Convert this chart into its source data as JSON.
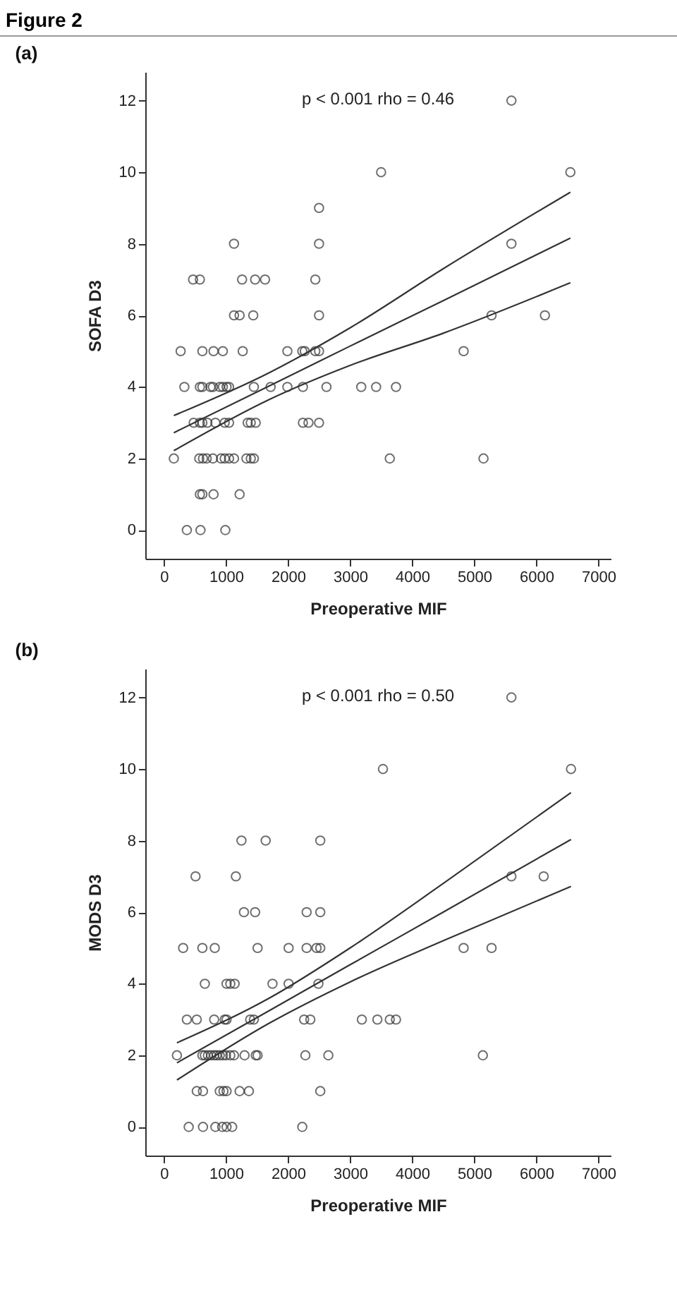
{
  "chart_data": [
    {
      "type": "scatter",
      "title": "Figure 2",
      "subtitle": "(a)",
      "xlabel": "Preoperative MIF",
      "ylabel": "SOFA D3",
      "annotations": [
        "p < 0.001  rho = 0.46"
      ],
      "xlim": [
        -300,
        7200
      ],
      "xticks": [
        0,
        1000,
        2000,
        3000,
        4000,
        5000,
        6000,
        7000
      ],
      "ylim": [
        -0.8,
        12.8
      ],
      "yticks": [
        0,
        2,
        4,
        6,
        8,
        10,
        12
      ],
      "grid": false,
      "series": [
        {
          "type": "scatter",
          "marker": "circle",
          "color": "#333333",
          "x": [
            5600,
            3500,
            6550,
            2500,
            1130,
            2500,
            5600,
            470,
            580,
            1260,
            1470,
            1630,
            2440,
            1130,
            1220,
            1440,
            2500,
            5280,
            6140,
            270,
            620,
            800,
            950,
            1270,
            1990,
            2230,
            2270,
            2440,
            2500,
            4830,
            330,
            580,
            620,
            750,
            790,
            900,
            950,
            1010,
            1050,
            1450,
            1720,
            1990,
            2240,
            2620,
            3180,
            3420,
            3740,
            480,
            580,
            620,
            700,
            830,
            980,
            1050,
            1350,
            1400,
            1480,
            2240,
            2330,
            2500,
            160,
            570,
            630,
            690,
            790,
            920,
            980,
            1050,
            1130,
            1330,
            1400,
            1450,
            3640,
            5150,
            580,
            620,
            800,
            1220,
            370,
            590,
            990
          ],
          "values": [
            12,
            10,
            10,
            9,
            8,
            8,
            8,
            7,
            7,
            7,
            7,
            7,
            7,
            6,
            6,
            6,
            6,
            6,
            6,
            5,
            5,
            5,
            5,
            5,
            5,
            5,
            5,
            5,
            5,
            5,
            4,
            4,
            4,
            4,
            4,
            4,
            4,
            4,
            4,
            4,
            4,
            4,
            4,
            4,
            4,
            4,
            4,
            3,
            3,
            3,
            3,
            3,
            3,
            3,
            3,
            3,
            3,
            3,
            3,
            3,
            2,
            2,
            2,
            2,
            2,
            2,
            2,
            2,
            2,
            2,
            2,
            2,
            2,
            2,
            1,
            1,
            1,
            1,
            0,
            0,
            0
          ]
        },
        {
          "type": "line",
          "color": "#333333",
          "x": [
            160,
            1700,
            3000,
            4500,
            6550
          ],
          "values": [
            2.72,
            4.03,
            5.14,
            6.41,
            8.16
          ]
        },
        {
          "type": "line",
          "color": "#333333",
          "x": [
            160,
            1700,
            3000,
            4500,
            6550
          ],
          "values": [
            3.2,
            4.4,
            5.65,
            7.3,
            9.44
          ]
        },
        {
          "type": "line",
          "color": "#333333",
          "x": [
            160,
            1700,
            3000,
            4500,
            6550
          ],
          "values": [
            2.22,
            3.65,
            4.6,
            5.5,
            6.91
          ]
        }
      ]
    },
    {
      "type": "scatter",
      "subtitle": "(b)",
      "xlabel": "Preoperative MIF",
      "ylabel": "MODS D3",
      "annotations": [
        "p < 0.001  rho = 0.50"
      ],
      "xlim": [
        -300,
        7200
      ],
      "xticks": [
        0,
        1000,
        2000,
        3000,
        4000,
        5000,
        6000,
        7000
      ],
      "ylim": [
        -0.8,
        12.8
      ],
      "yticks": [
        0,
        2,
        4,
        6,
        8,
        10,
        12
      ],
      "grid": false,
      "series": [
        {
          "type": "scatter",
          "marker": "circle",
          "color": "#333333",
          "x": [
            5600,
            3530,
            6560,
            1250,
            1640,
            2520,
            510,
            1160,
            5600,
            6120,
            1290,
            1470,
            2300,
            2520,
            310,
            620,
            820,
            1510,
            2010,
            2300,
            2460,
            2520,
            4830,
            5280,
            660,
            1010,
            1070,
            1140,
            1750,
            2010,
            2490,
            370,
            530,
            810,
            980,
            1010,
            1390,
            1450,
            2260,
            2360,
            3190,
            3440,
            3640,
            3740,
            210,
            620,
            660,
            710,
            760,
            810,
            850,
            900,
            950,
            1000,
            1070,
            1130,
            1300,
            1480,
            1510,
            2280,
            2650,
            5140,
            530,
            630,
            900,
            960,
            1010,
            1220,
            1370,
            2520,
            400,
            630,
            830,
            940,
            1010,
            1100,
            2230
          ],
          "values": [
            12,
            10,
            10,
            8,
            8,
            8,
            7,
            7,
            7,
            7,
            6,
            6,
            6,
            6,
            5,
            5,
            5,
            5,
            5,
            5,
            5,
            5,
            5,
            5,
            4,
            4,
            4,
            4,
            4,
            4,
            4,
            3,
            3,
            3,
            3,
            3,
            3,
            3,
            3,
            3,
            3,
            3,
            3,
            3,
            2,
            2,
            2,
            2,
            2,
            2,
            2,
            2,
            2,
            2,
            2,
            2,
            2,
            2,
            2,
            2,
            2,
            2,
            1,
            1,
            1,
            1,
            1,
            1,
            1,
            1,
            0,
            0,
            0,
            0,
            0,
            0,
            0
          ]
        },
        {
          "type": "line",
          "color": "#333333",
          "x": [
            210,
            1700,
            3000,
            4500,
            6560
          ],
          "values": [
            1.79,
            3.25,
            4.53,
            6.0,
            8.03
          ]
        },
        {
          "type": "line",
          "color": "#333333",
          "x": [
            210,
            1700,
            3000,
            4500,
            6560
          ],
          "values": [
            2.35,
            3.6,
            5.0,
            6.8,
            9.34
          ]
        },
        {
          "type": "line",
          "color": "#333333",
          "x": [
            210,
            1700,
            3000,
            4500,
            6560
          ],
          "values": [
            1.31,
            2.9,
            4.05,
            5.2,
            6.72
          ]
        }
      ]
    }
  ]
}
